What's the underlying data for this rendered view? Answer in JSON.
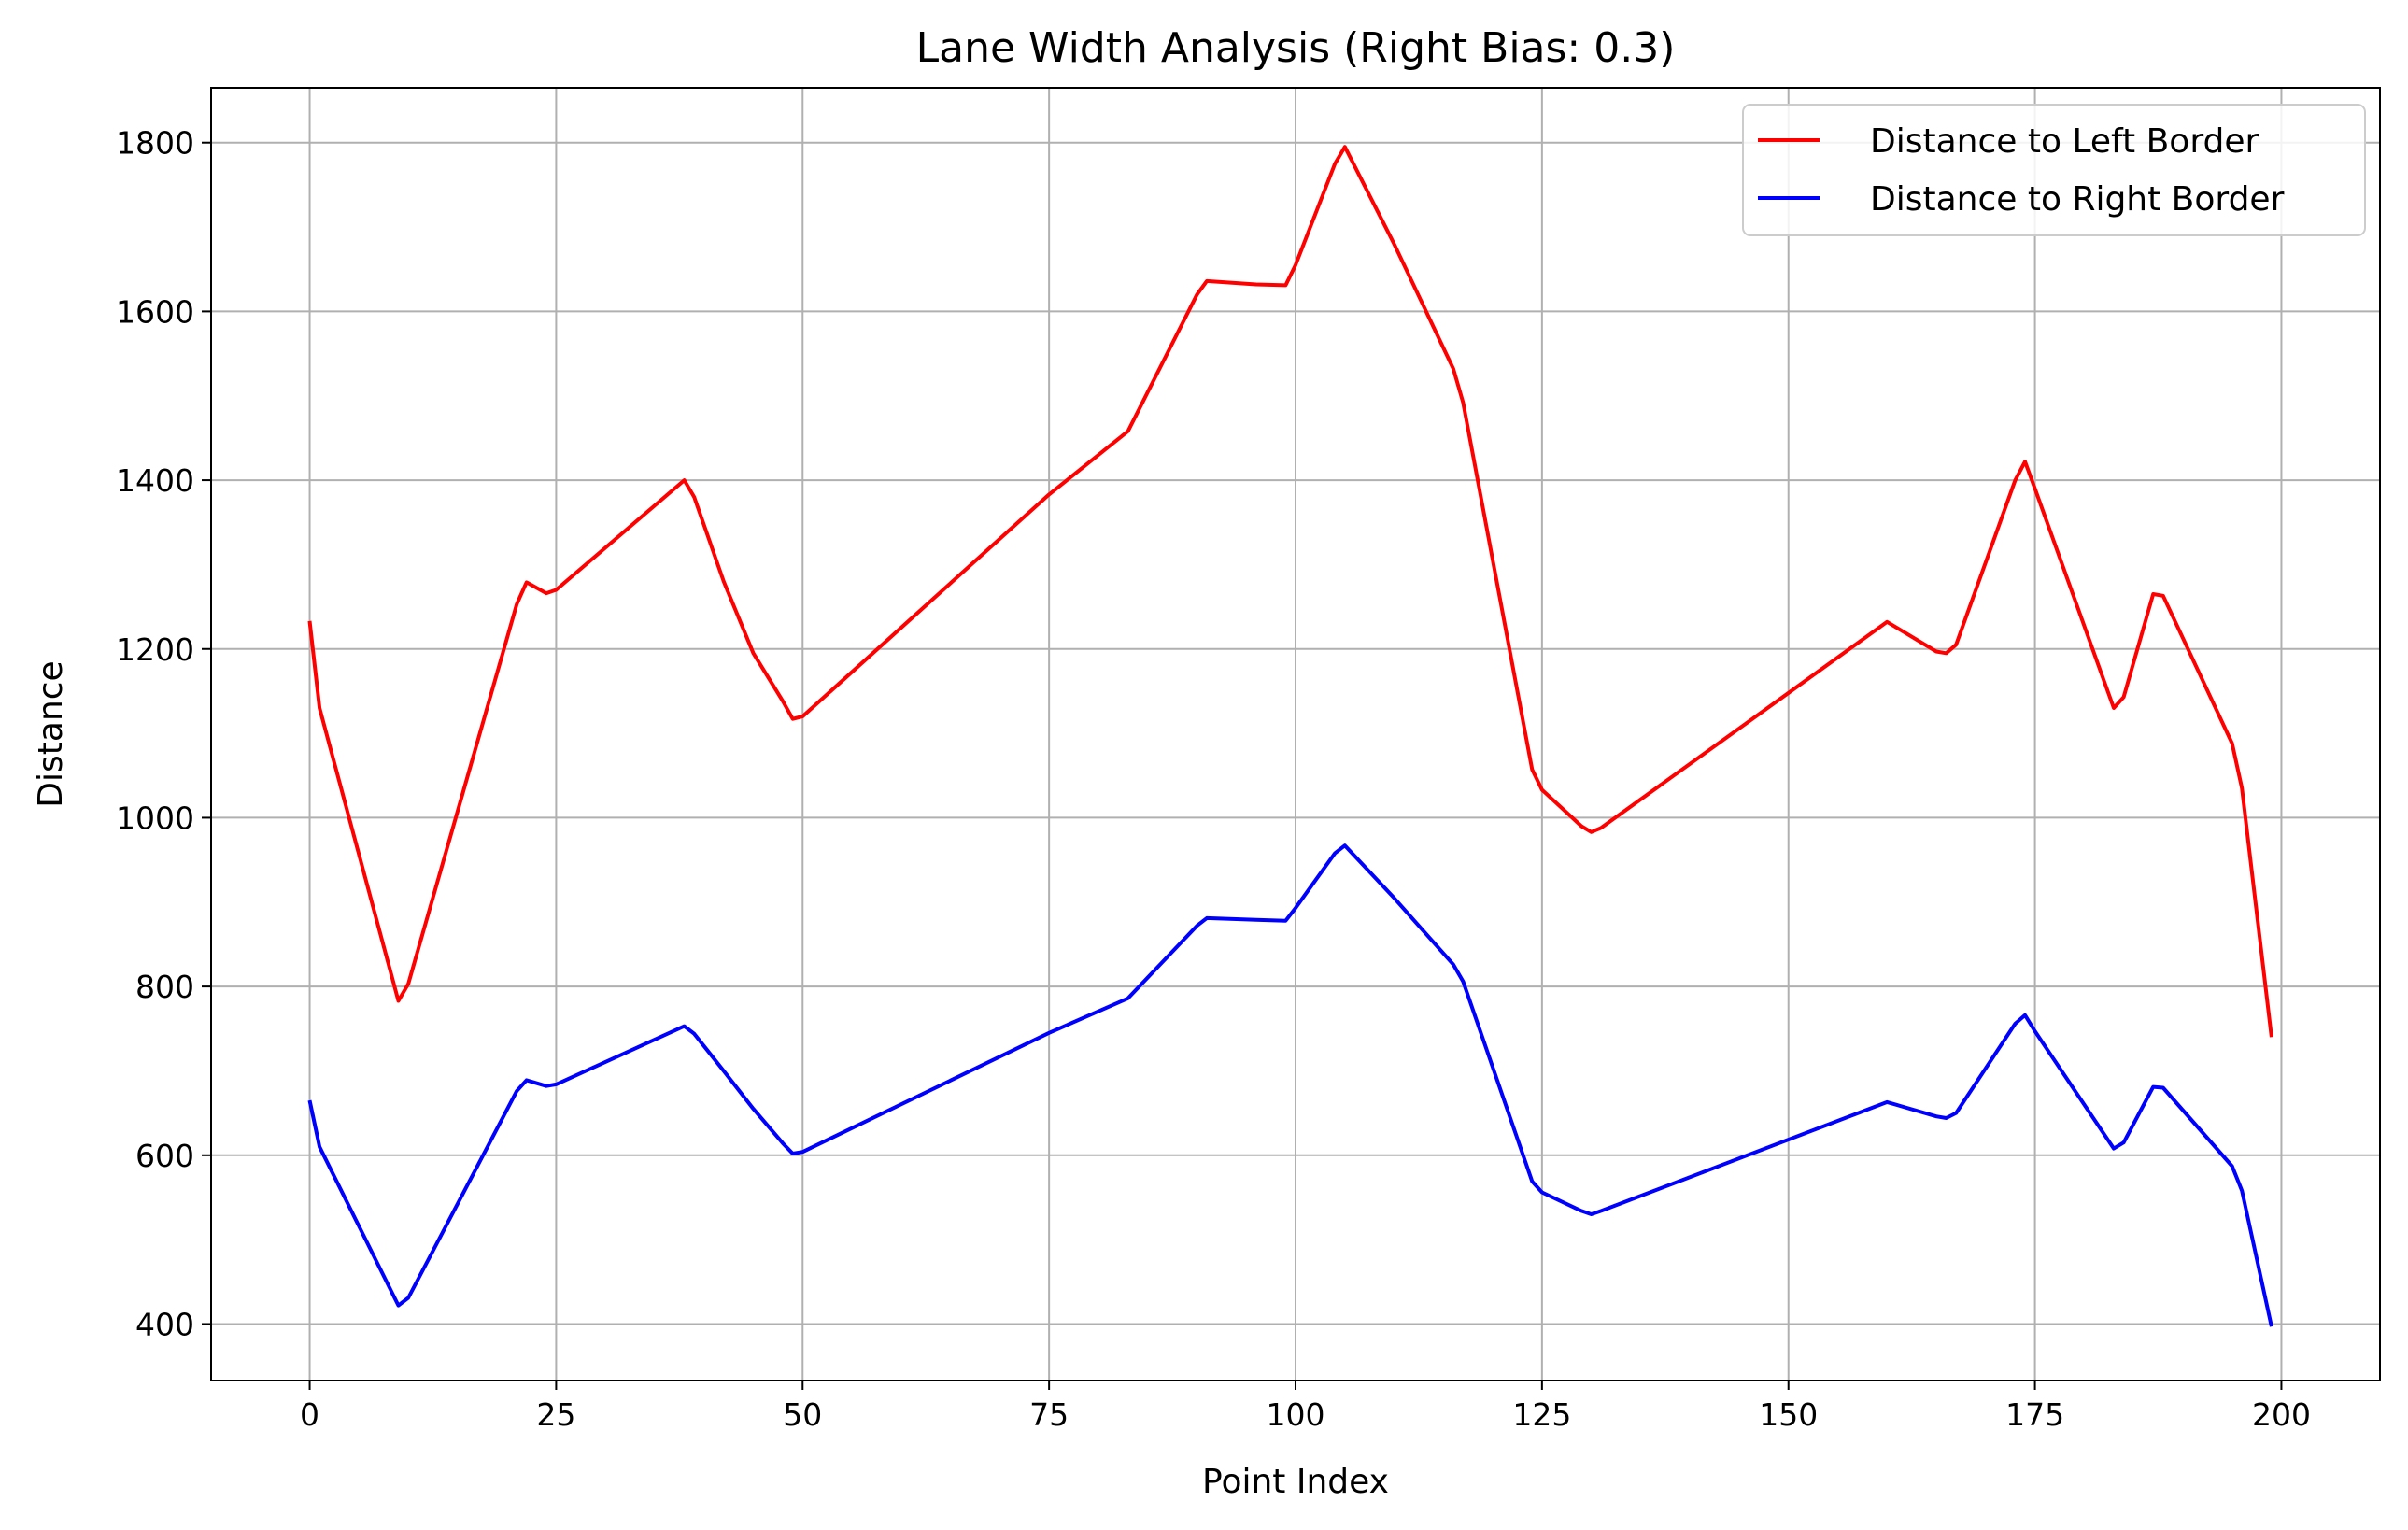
{
  "chart_data": {
    "type": "line",
    "title": "Lane Width Analysis (Right Bias: 0.3)",
    "xlabel": "Point Index",
    "ylabel": "Distance",
    "xlim": [
      -10,
      210
    ],
    "ylim": [
      333,
      1865
    ],
    "x_ticks": [
      0,
      25,
      50,
      75,
      100,
      125,
      150,
      175,
      200
    ],
    "y_ticks": [
      400,
      600,
      800,
      1000,
      1200,
      1400,
      1600,
      1800
    ],
    "grid": true,
    "legend_position": "top-right",
    "series": [
      {
        "name": "Distance to Left Border",
        "color": "#ff0000",
        "points": [
          [
            0,
            1233
          ],
          [
            1,
            1130
          ],
          [
            9,
            783
          ],
          [
            10,
            803
          ],
          [
            21,
            1253
          ],
          [
            22,
            1279
          ],
          [
            24,
            1266
          ],
          [
            25,
            1270
          ],
          [
            38,
            1400
          ],
          [
            39,
            1380
          ],
          [
            42,
            1280
          ],
          [
            45,
            1195
          ],
          [
            48,
            1138
          ],
          [
            49,
            1117
          ],
          [
            50,
            1120
          ],
          [
            75,
            1383
          ],
          [
            83,
            1458
          ],
          [
            90,
            1620
          ],
          [
            91,
            1636
          ],
          [
            96,
            1632
          ],
          [
            99,
            1631
          ],
          [
            100,
            1655
          ],
          [
            104,
            1775
          ],
          [
            105,
            1795
          ],
          [
            110,
            1680
          ],
          [
            116,
            1532
          ],
          [
            117,
            1492
          ],
          [
            124,
            1057
          ],
          [
            125,
            1033
          ],
          [
            129,
            990
          ],
          [
            130,
            983
          ],
          [
            131,
            988
          ],
          [
            160,
            1232
          ],
          [
            165,
            1197
          ],
          [
            166,
            1195
          ],
          [
            167,
            1205
          ],
          [
            173,
            1400
          ],
          [
            174,
            1422
          ],
          [
            175,
            1390
          ],
          [
            183,
            1130
          ],
          [
            184,
            1143
          ],
          [
            187,
            1265
          ],
          [
            188,
            1263
          ],
          [
            195,
            1088
          ],
          [
            196,
            1035
          ],
          [
            199,
            740
          ]
        ]
      },
      {
        "name": "Distance to Right Border",
        "color": "#0000ff",
        "points": [
          [
            0,
            665
          ],
          [
            1,
            610
          ],
          [
            9,
            422
          ],
          [
            10,
            431
          ],
          [
            21,
            676
          ],
          [
            22,
            689
          ],
          [
            24,
            682
          ],
          [
            25,
            684
          ],
          [
            38,
            753
          ],
          [
            39,
            744
          ],
          [
            42,
            700
          ],
          [
            45,
            655
          ],
          [
            48,
            614
          ],
          [
            49,
            602
          ],
          [
            50,
            604
          ],
          [
            75,
            745
          ],
          [
            83,
            786
          ],
          [
            90,
            872
          ],
          [
            91,
            881
          ],
          [
            96,
            879
          ],
          [
            99,
            878
          ],
          [
            100,
            893
          ],
          [
            104,
            958
          ],
          [
            105,
            967
          ],
          [
            110,
            905
          ],
          [
            116,
            826
          ],
          [
            117,
            806
          ],
          [
            124,
            569
          ],
          [
            125,
            556
          ],
          [
            129,
            534
          ],
          [
            130,
            530
          ],
          [
            131,
            534
          ],
          [
            160,
            663
          ],
          [
            165,
            646
          ],
          [
            166,
            644
          ],
          [
            167,
            650
          ],
          [
            173,
            756
          ],
          [
            174,
            766
          ],
          [
            175,
            747
          ],
          [
            183,
            608
          ],
          [
            184,
            615
          ],
          [
            187,
            681
          ],
          [
            188,
            680
          ],
          [
            195,
            587
          ],
          [
            196,
            558
          ],
          [
            199,
            397
          ]
        ]
      }
    ]
  }
}
